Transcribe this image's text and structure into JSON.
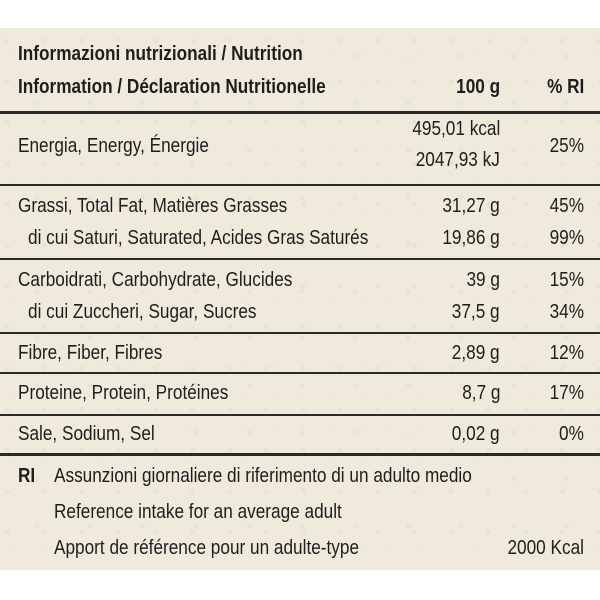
{
  "header": {
    "title_line1": "Informazioni nutrizionali / Nutrition",
    "title_line2": "Information / Déclaration Nutritionelle",
    "col_amount": "100 g",
    "col_ri": "% RI"
  },
  "rows": [
    {
      "label": "Energia, Energy, Énergie",
      "amount_kcal": "495,01 kcal",
      "amount_kj": "2047,93 kJ",
      "ri": "25%"
    },
    {
      "label": "Grassi, Total Fat, Matières Grasses",
      "amount": "31,27 g",
      "ri": "45%"
    },
    {
      "label": "di cui Saturi, Saturated, Acides Gras Saturés",
      "amount": "19,86 g",
      "ri": "99%"
    },
    {
      "label": "Carboidrati, Carbohydrate, Glucides",
      "amount": "39 g",
      "ri": "15%"
    },
    {
      "label": "di cui Zuccheri, Sugar, Sucres",
      "amount": "37,5 g",
      "ri": "34%"
    },
    {
      "label": "Fibre, Fiber, Fibres",
      "amount": "2,89 g",
      "ri": "12%"
    },
    {
      "label": "Proteine, Protein, Protéines",
      "amount": "8,7 g",
      "ri": "17%"
    },
    {
      "label": "Sale, Sodium, Sel",
      "amount": "0,02 g",
      "ri": "0%"
    }
  ],
  "footer": {
    "ri_key": "RI",
    "line_it": "Assunzioni giornaliere di riferimento di un adulto medio",
    "line_en": "Reference intake for an average adult",
    "line_fr": "Apport de référence pour un adulte-type",
    "reference_value": "2000 Kcal"
  }
}
